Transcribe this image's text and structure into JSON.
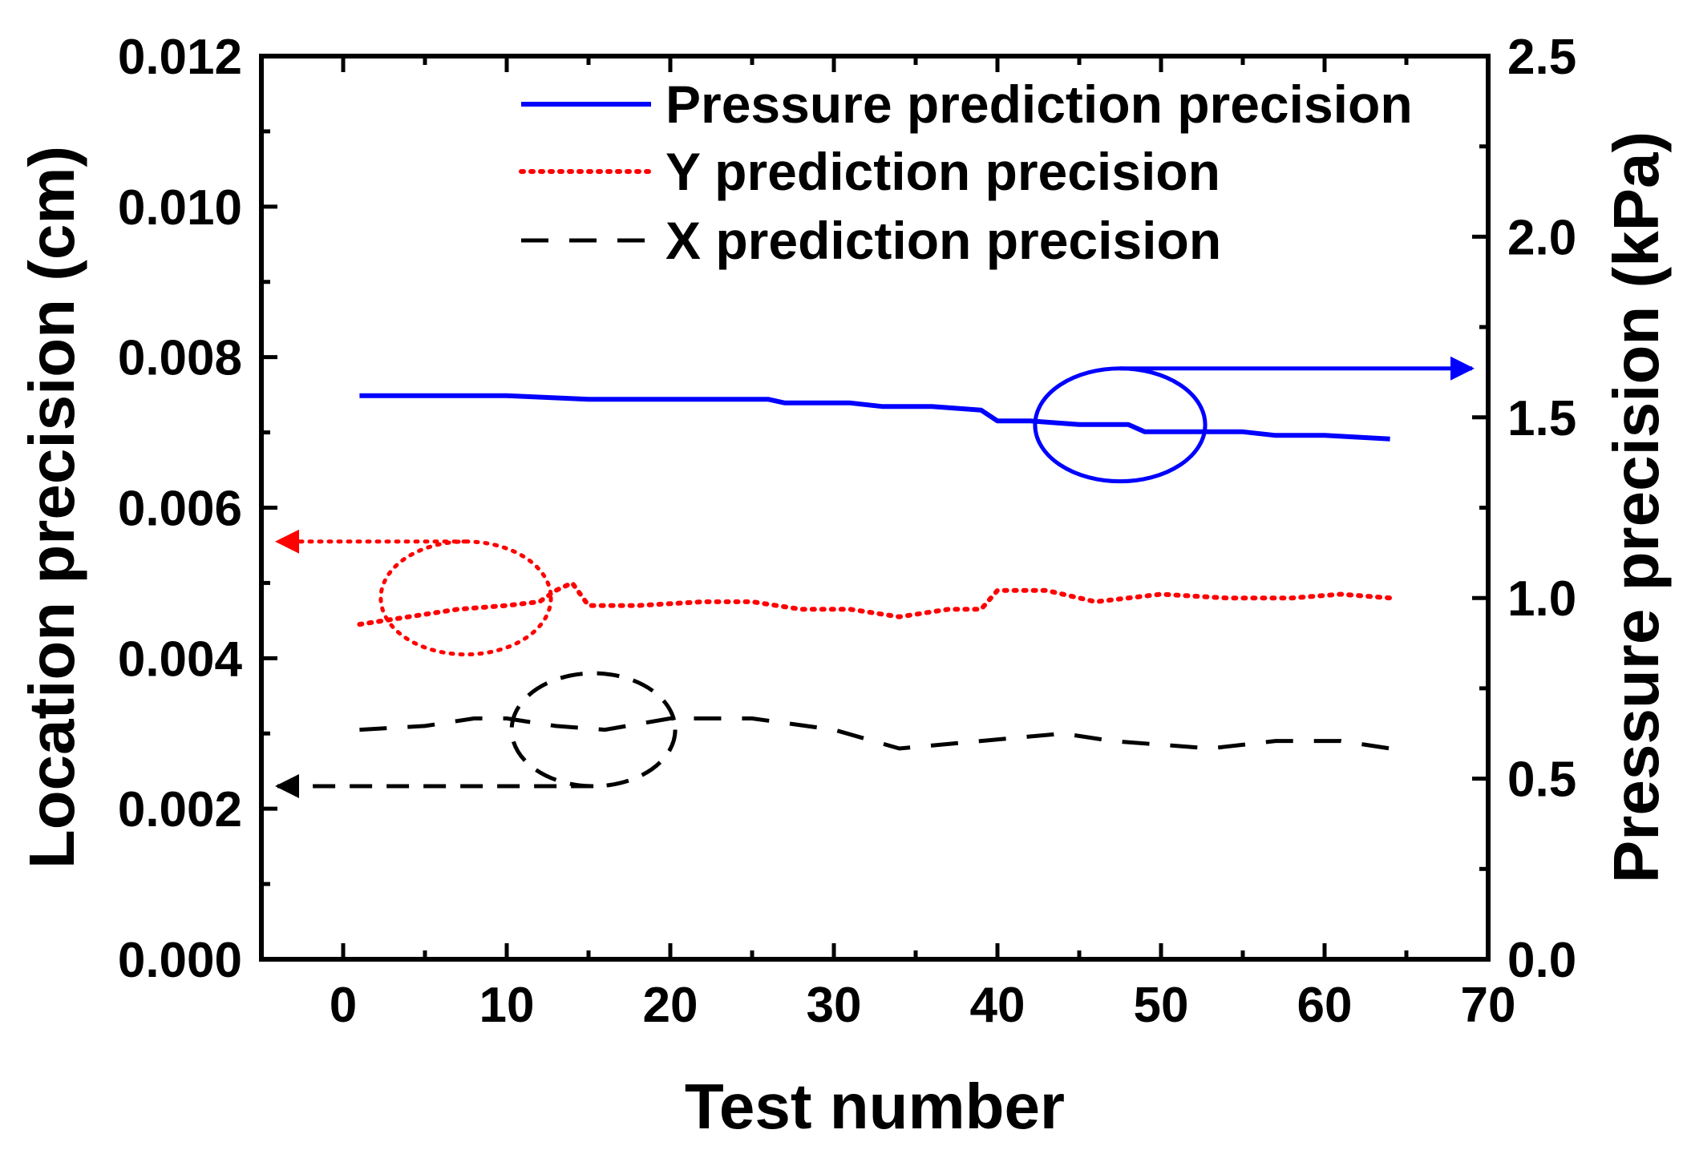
{
  "chart_data": {
    "type": "line",
    "title": "",
    "xlabel": "Test number",
    "ylabel_left": "Location precision (cm)",
    "ylabel_right": "Pressure precision (kPa)",
    "xlim": [
      -5,
      70
    ],
    "ylim_left": [
      0,
      0.012
    ],
    "ylim_right": [
      0,
      2.5
    ],
    "xticks": [
      "0",
      "10",
      "20",
      "30",
      "40",
      "50",
      "60",
      "70"
    ],
    "xtick_values": [
      0,
      10,
      20,
      30,
      40,
      50,
      60,
      70
    ],
    "yticks_left": [
      "0.000",
      "0.002",
      "0.004",
      "0.006",
      "0.008",
      "0.010",
      "0.012"
    ],
    "ytick_values_left": [
      0,
      0.002,
      0.004,
      0.006,
      0.008,
      0.01,
      0.012
    ],
    "yticks_right": [
      "0.0",
      "0.5",
      "1.0",
      "1.5",
      "2.0",
      "2.5"
    ],
    "ytick_values_right": [
      0,
      0.5,
      1.0,
      1.5,
      2.0,
      2.5
    ],
    "grid": false,
    "legend_position": "top-right",
    "series": [
      {
        "name": "Pressure prediction precision",
        "axis": "right",
        "color": "#0000ff",
        "style": "solid",
        "x": [
          1,
          5,
          10,
          15,
          20,
          26,
          27,
          31,
          33,
          36,
          39,
          40,
          42,
          45,
          48,
          49,
          52,
          55,
          57,
          60,
          64
        ],
        "y": [
          1.56,
          1.56,
          1.56,
          1.55,
          1.55,
          1.55,
          1.54,
          1.54,
          1.53,
          1.53,
          1.52,
          1.49,
          1.49,
          1.48,
          1.48,
          1.46,
          1.46,
          1.46,
          1.45,
          1.45,
          1.44
        ]
      },
      {
        "name": "Y prediction precision",
        "axis": "left",
        "color": "#ff0000",
        "style": "dotted",
        "x": [
          1,
          4,
          7,
          10,
          12,
          13,
          14,
          15,
          18,
          22,
          25,
          28,
          31,
          34,
          37,
          39,
          40,
          43,
          46,
          50,
          54,
          58,
          61,
          64
        ],
        "y": [
          0.00445,
          0.00455,
          0.00465,
          0.0047,
          0.00475,
          0.0049,
          0.005,
          0.0047,
          0.0047,
          0.00475,
          0.00475,
          0.00465,
          0.00465,
          0.00455,
          0.00465,
          0.00465,
          0.0049,
          0.0049,
          0.00475,
          0.00485,
          0.0048,
          0.0048,
          0.00485,
          0.0048
        ]
      },
      {
        "name": "X prediction precision",
        "axis": "left",
        "color": "#000000",
        "style": "dashed",
        "x": [
          1,
          5,
          8,
          10,
          13,
          16,
          20,
          25,
          30,
          34,
          39,
          44,
          47,
          53,
          57,
          61,
          64
        ],
        "y": [
          0.00305,
          0.0031,
          0.0032,
          0.0032,
          0.0031,
          0.00305,
          0.0032,
          0.0032,
          0.00305,
          0.0028,
          0.0029,
          0.003,
          0.0029,
          0.0028,
          0.0029,
          0.0029,
          0.0028
        ]
      }
    ],
    "annotations": [
      {
        "type": "ellipse",
        "color": "#0000ff",
        "cx": 47.5,
        "cy": 0.0071,
        "rx": 5.2,
        "ry": 0.00075,
        "arrow_to": "right-axis"
      },
      {
        "type": "ellipse",
        "color": "#ff0000",
        "cx": 7.5,
        "cy": 0.0048,
        "rx": 5.2,
        "ry": 0.00075,
        "arrow_to": "left-axis"
      },
      {
        "type": "ellipse",
        "color": "#000000",
        "cx": 15.3,
        "cy": 0.00305,
        "rx": 5.0,
        "ry": 0.00075,
        "arrow_to": "left-axis"
      }
    ]
  }
}
